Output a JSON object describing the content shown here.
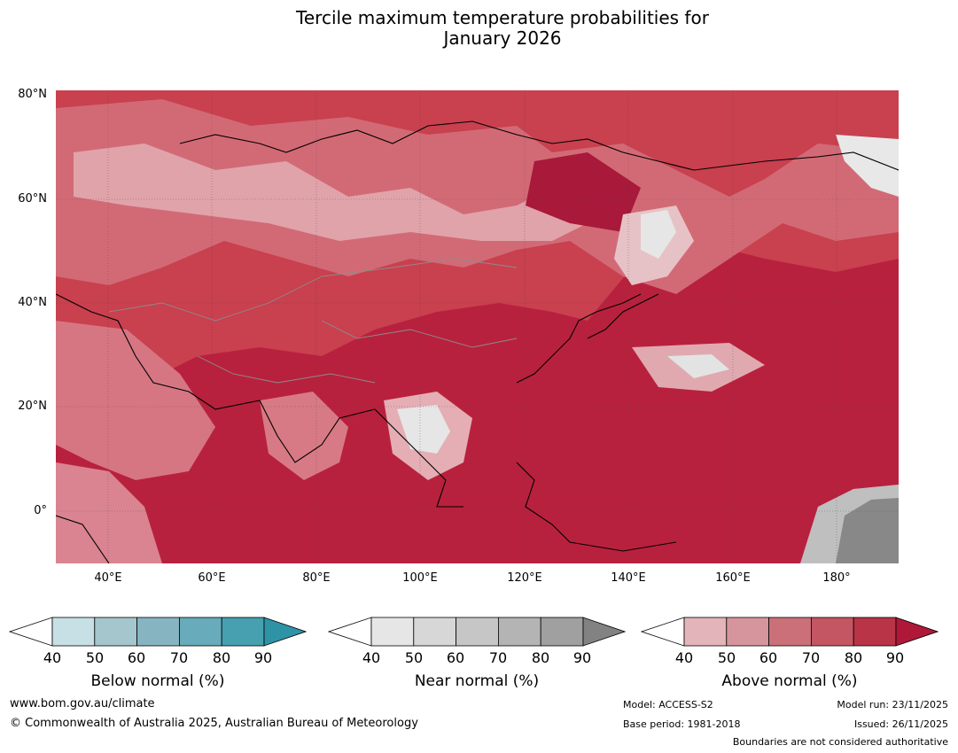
{
  "title_line1": "Tercile maximum temperature probabilities for",
  "title_line2": "January 2026",
  "map": {
    "lat_labels": [
      "80°N",
      "60°N",
      "40°N",
      "20°N",
      "0°"
    ],
    "lon_labels": [
      "40°E",
      "60°E",
      "80°E",
      "100°E",
      "120°E",
      "140°E",
      "160°E",
      "180°"
    ],
    "colors": {
      "above_90": "#b0203d",
      "above_80": "#c8374b",
      "above_70": "#ce4f60",
      "above_60": "#db7f89",
      "above_50": "#e3a9b0",
      "near_low": "#e6e6e6",
      "near_high": "#888888",
      "below_low": "#c6e0e6",
      "coast": "#000000",
      "border": "#8c8c8c"
    }
  },
  "colorbars": [
    {
      "name": "below",
      "title": "Below normal (%)",
      "ticks": [
        "40",
        "50",
        "60",
        "70",
        "80",
        "90"
      ],
      "colors": [
        "#ffffff",
        "#c6e0e6",
        "#a5c6cd",
        "#86b5c1",
        "#68abba",
        "#46a0b0",
        "#2f93a6"
      ]
    },
    {
      "name": "near",
      "title": "Near normal (%)",
      "ticks": [
        "40",
        "50",
        "60",
        "70",
        "80",
        "90"
      ],
      "colors": [
        "#ffffff",
        "#e6e6e6",
        "#d7d7d7",
        "#c6c6c6",
        "#b4b4b4",
        "#a0a0a0",
        "#828282"
      ]
    },
    {
      "name": "above",
      "title": "Above normal (%)",
      "ticks": [
        "40",
        "50",
        "60",
        "70",
        "80",
        "90"
      ],
      "colors": [
        "#ffffff",
        "#e3b4b9",
        "#d6959c",
        "#cb7078",
        "#c45562",
        "#b83446",
        "#b0183a"
      ]
    }
  ],
  "footer": {
    "website": "www.bom.gov.au/climate",
    "copyright": "© Commonwealth of Australia 2025, Australian Bureau of Meteorology",
    "model": "Model: ACCESS-S2",
    "base_period": "Base period: 1981-2018",
    "model_run": "Model run: 23/11/2025",
    "issued": "Issued: 26/11/2025",
    "disclaimer": "Boundaries are not considered authoritative"
  }
}
